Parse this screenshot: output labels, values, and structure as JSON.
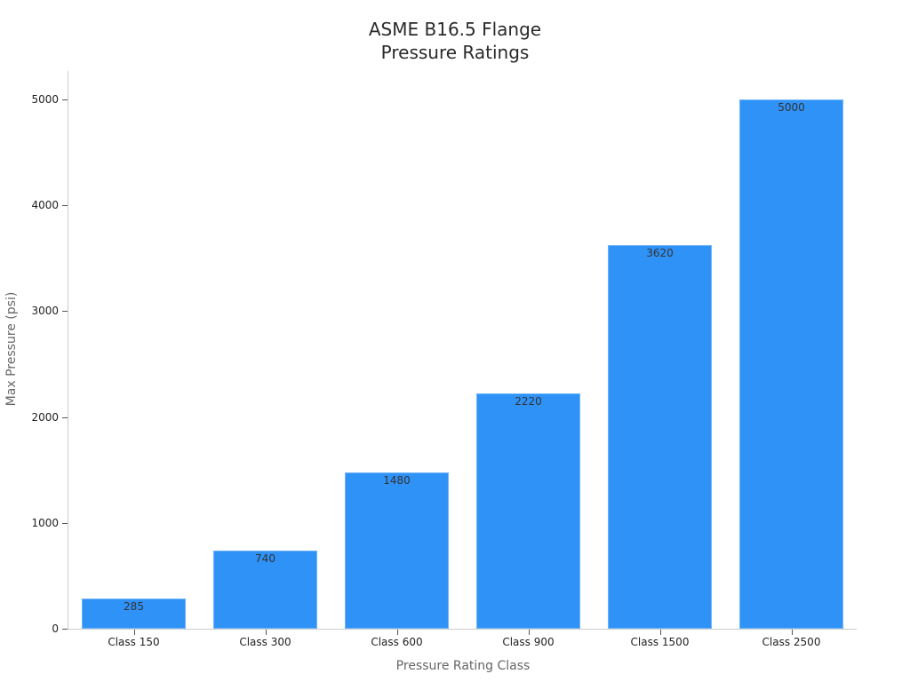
{
  "chart_data": {
    "type": "bar",
    "title": "ASME B16.5 Flange Pressure Ratings",
    "title_lines": [
      "ASME B16.5 Flange",
      "Pressure Ratings"
    ],
    "xlabel": "Pressure Rating Class",
    "ylabel": "Max Pressure (psi)",
    "categories": [
      "Class 150",
      "Class 300",
      "Class 600",
      "Class 900",
      "Class 1500",
      "Class 2500"
    ],
    "values": [
      285,
      740,
      1480,
      2220,
      3620,
      5000
    ],
    "data_labels": [
      "285",
      "740",
      "1480",
      "2220",
      "3620",
      "5000"
    ],
    "yticks": [
      0,
      1000,
      2000,
      3000,
      4000,
      5000
    ],
    "ytick_labels": [
      "0",
      "1000",
      "2000",
      "3000",
      "4000",
      "5000"
    ],
    "ylim": [
      0,
      5250
    ],
    "grid": false,
    "legend": null,
    "bar_color": "#2f92f7"
  }
}
